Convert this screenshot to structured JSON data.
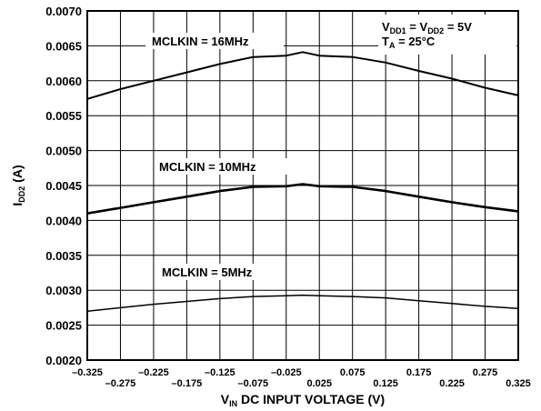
{
  "chart_data": {
    "type": "line",
    "xlabel": {
      "main": "V",
      "sub": "IN",
      "rest": " DC INPUT VOLTAGE (V)"
    },
    "ylabel": {
      "main": "I",
      "sub": "DD2",
      "rest": " (A)"
    },
    "xlim": [
      -0.325,
      0.325
    ],
    "ylim": [
      0.002,
      0.007
    ],
    "grid": true,
    "x_ticks": [
      -0.325,
      -0.275,
      -0.225,
      -0.175,
      -0.125,
      -0.075,
      -0.025,
      0.025,
      0.075,
      0.125,
      0.175,
      0.225,
      0.275,
      0.325
    ],
    "x_tick_labels": [
      "–0.325",
      "–0.275",
      "–0.225",
      "–0.175",
      "–0.125",
      "–0.075",
      "–0.025",
      "0.025",
      "0.075",
      "0.125",
      "0.175",
      "0.225",
      "0.275",
      "0.325"
    ],
    "y_ticks": [
      0.002,
      0.0025,
      0.003,
      0.0035,
      0.004,
      0.0045,
      0.005,
      0.0055,
      0.006,
      0.0065,
      0.007
    ],
    "y_tick_labels": [
      "0.0020",
      "0.0025",
      "0.0030",
      "0.0035",
      "0.0040",
      "0.0045",
      "0.0050",
      "0.0055",
      "0.0060",
      "0.0065",
      "0.0070"
    ],
    "annotation": {
      "line1": {
        "a": "V",
        "a_sub": "DD1",
        "b": " = V",
        "b_sub": "DD2",
        "c": " = 5V"
      },
      "line2": {
        "a": "T",
        "a_sub": "A",
        "c": " = 25°C"
      }
    },
    "series": [
      {
        "name": "MCLKIN = 16MHz",
        "color": "#000000",
        "x": [
          -0.325,
          -0.275,
          -0.225,
          -0.175,
          -0.125,
          -0.075,
          -0.025,
          0.0,
          0.025,
          0.075,
          0.125,
          0.175,
          0.225,
          0.275,
          0.325
        ],
        "values": [
          0.00574,
          0.00588,
          0.006,
          0.00612,
          0.00624,
          0.00634,
          0.00636,
          0.00641,
          0.00636,
          0.00634,
          0.00626,
          0.00614,
          0.00603,
          0.0059,
          0.00579
        ]
      },
      {
        "name": "MCLKIN = 10MHz",
        "color": "#000000",
        "x": [
          -0.325,
          -0.275,
          -0.225,
          -0.175,
          -0.125,
          -0.075,
          -0.025,
          0.0,
          0.025,
          0.075,
          0.125,
          0.175,
          0.225,
          0.275,
          0.325
        ],
        "values": [
          0.0041,
          0.00418,
          0.00426,
          0.00434,
          0.00442,
          0.00448,
          0.00449,
          0.00452,
          0.00449,
          0.00448,
          0.00442,
          0.00434,
          0.00426,
          0.00419,
          0.00413
        ]
      },
      {
        "name": "MCLKIN = 5MHz",
        "color": "#000000",
        "x": [
          -0.325,
          -0.275,
          -0.225,
          -0.175,
          -0.125,
          -0.075,
          -0.025,
          0.0,
          0.025,
          0.075,
          0.125,
          0.175,
          0.225,
          0.275,
          0.325
        ],
        "values": [
          0.0027,
          0.00275,
          0.0028,
          0.00284,
          0.00288,
          0.00291,
          0.00292,
          0.00293,
          0.00292,
          0.00291,
          0.00289,
          0.00285,
          0.00281,
          0.00277,
          0.00274
        ]
      }
    ]
  }
}
